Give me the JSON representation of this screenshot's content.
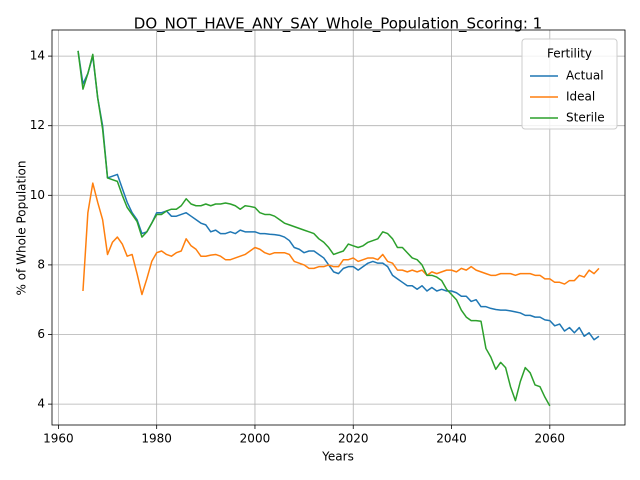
{
  "chart_data": {
    "type": "line",
    "title": "DO_NOT_HAVE_ANY_SAY_Whole_Population_Scoring: 1",
    "xlabel": "Years",
    "ylabel": "% of Whole Population",
    "legend_title": "Fertility",
    "legend": "upper right",
    "grid": true,
    "xlim": [
      1958.7,
      2075.3
    ],
    "ylim": [
      3.4,
      14.75
    ],
    "xticks": [
      1960,
      1980,
      2000,
      2020,
      2040,
      2060
    ],
    "yticks": [
      4,
      6,
      8,
      10,
      12,
      14
    ],
    "x": [
      1964,
      1965,
      1966,
      1967,
      1968,
      1969,
      1970,
      1971,
      1972,
      1973,
      1974,
      1975,
      1976,
      1977,
      1978,
      1979,
      1980,
      1981,
      1982,
      1983,
      1984,
      1985,
      1986,
      1987,
      1988,
      1989,
      1990,
      1991,
      1992,
      1993,
      1994,
      1995,
      1996,
      1997,
      1998,
      1999,
      2000,
      2001,
      2002,
      2003,
      2004,
      2005,
      2006,
      2007,
      2008,
      2009,
      2010,
      2011,
      2012,
      2013,
      2014,
      2015,
      2016,
      2017,
      2018,
      2019,
      2020,
      2021,
      2022,
      2023,
      2024,
      2025,
      2026,
      2027,
      2028,
      2029,
      2030,
      2031,
      2032,
      2033,
      2034,
      2035,
      2036,
      2037,
      2038,
      2039,
      2040,
      2041,
      2042,
      2043,
      2044,
      2045,
      2046,
      2047,
      2048,
      2049,
      2050,
      2051,
      2052,
      2053,
      2054,
      2055,
      2056,
      2057,
      2058,
      2059,
      2060,
      2061,
      2062,
      2063,
      2064,
      2065,
      2066,
      2067,
      2068,
      2069,
      2070
    ],
    "series": [
      {
        "name": "Actual",
        "color": "#1f77b4",
        "values": [
          14.15,
          13.2,
          13.5,
          14.0,
          12.8,
          12.0,
          10.5,
          10.55,
          10.6,
          10.2,
          9.8,
          9.5,
          9.3,
          8.9,
          8.95,
          9.2,
          9.5,
          9.5,
          9.55,
          9.4,
          9.4,
          9.45,
          9.5,
          9.4,
          9.3,
          9.2,
          9.15,
          8.95,
          9.0,
          8.9,
          8.9,
          8.95,
          8.9,
          9.0,
          8.95,
          8.95,
          8.95,
          8.9,
          8.9,
          8.88,
          8.87,
          8.85,
          8.8,
          8.7,
          8.5,
          8.45,
          8.35,
          8.4,
          8.4,
          8.3,
          8.2,
          8.0,
          7.8,
          7.75,
          7.9,
          7.95,
          7.95,
          7.85,
          7.95,
          8.05,
          8.1,
          8.05,
          8.05,
          7.95,
          7.7,
          7.6,
          7.5,
          7.4,
          7.4,
          7.3,
          7.4,
          7.25,
          7.35,
          7.25,
          7.3,
          7.25,
          7.25,
          7.2,
          7.1,
          7.1,
          6.95,
          7.0,
          6.8,
          6.8,
          6.75,
          6.72,
          6.7,
          6.7,
          6.68,
          6.65,
          6.62,
          6.55,
          6.55,
          6.5,
          6.5,
          6.42,
          6.4,
          6.25,
          6.3,
          6.1,
          6.2,
          6.05,
          6.2,
          5.95,
          6.05,
          5.85,
          5.95
        ]
      },
      {
        "name": "Ideal",
        "color": "#ff7f0e",
        "values": [
          null,
          7.25,
          9.5,
          10.35,
          9.8,
          9.3,
          8.3,
          8.65,
          8.8,
          8.6,
          8.25,
          8.3,
          7.75,
          7.15,
          7.6,
          8.1,
          8.35,
          8.4,
          8.3,
          8.25,
          8.35,
          8.4,
          8.75,
          8.55,
          8.45,
          8.25,
          8.25,
          8.28,
          8.3,
          8.25,
          8.15,
          8.15,
          8.2,
          8.25,
          8.3,
          8.4,
          8.5,
          8.45,
          8.35,
          8.3,
          8.35,
          8.35,
          8.35,
          8.3,
          8.1,
          8.05,
          8.0,
          7.9,
          7.9,
          7.95,
          7.95,
          8.0,
          7.95,
          7.95,
          8.15,
          8.15,
          8.2,
          8.1,
          8.15,
          8.2,
          8.2,
          8.15,
          8.3,
          8.1,
          8.05,
          7.85,
          7.85,
          7.8,
          7.85,
          7.8,
          7.85,
          7.7,
          7.8,
          7.75,
          7.8,
          7.85,
          7.85,
          7.8,
          7.9,
          7.85,
          7.95,
          7.85,
          7.8,
          7.75,
          7.7,
          7.7,
          7.75,
          7.75,
          7.75,
          7.7,
          7.75,
          7.75,
          7.75,
          7.7,
          7.7,
          7.6,
          7.6,
          7.5,
          7.5,
          7.45,
          7.55,
          7.55,
          7.7,
          7.65,
          7.85,
          7.75,
          7.9
        ]
      },
      {
        "name": "Sterile",
        "color": "#2ca02c",
        "values": [
          14.15,
          13.05,
          13.5,
          14.05,
          12.8,
          11.9,
          10.5,
          10.45,
          10.4,
          10.0,
          9.65,
          9.45,
          9.25,
          8.8,
          8.95,
          9.2,
          9.45,
          9.45,
          9.55,
          9.6,
          9.6,
          9.7,
          9.9,
          9.75,
          9.7,
          9.7,
          9.75,
          9.7,
          9.75,
          9.75,
          9.78,
          9.75,
          9.7,
          9.6,
          9.7,
          9.68,
          9.65,
          9.5,
          9.45,
          9.45,
          9.4,
          9.3,
          9.2,
          9.15,
          9.1,
          9.05,
          9.0,
          8.95,
          8.9,
          8.75,
          8.65,
          8.5,
          8.3,
          8.35,
          8.4,
          8.6,
          8.55,
          8.5,
          8.55,
          8.65,
          8.7,
          8.75,
          8.95,
          8.9,
          8.75,
          8.5,
          8.5,
          8.35,
          8.2,
          8.15,
          8.0,
          7.7,
          7.7,
          7.65,
          7.55,
          7.3,
          7.15,
          7.0,
          6.7,
          6.5,
          6.4,
          6.4,
          6.38,
          5.6,
          5.35,
          5.0,
          5.2,
          5.05,
          4.5,
          4.1,
          4.65,
          5.05,
          4.9,
          4.55,
          4.5,
          4.2,
          3.95,
          null,
          null,
          null,
          null,
          null,
          null,
          null,
          null,
          null,
          null
        ]
      }
    ]
  }
}
